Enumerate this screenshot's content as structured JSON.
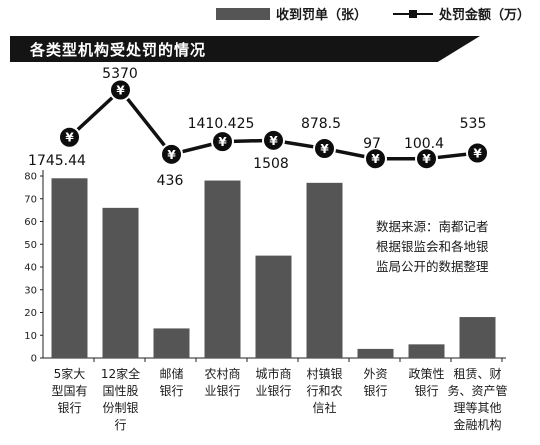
{
  "legend": {
    "bar_label": "收到罚单（张）",
    "line_label": "处罚金额（万）"
  },
  "title": "各类型机构受处罚的情况",
  "note": [
    "数据来源：南都记者",
    "根据银监会和各地银",
    "监局公开的数据整理"
  ],
  "icon": "¥",
  "colors": {
    "bar": "#555555",
    "line": "#111111",
    "coin": "#0d0d0d"
  },
  "chart_data": {
    "type": "bar+line",
    "categories": [
      [
        "5家大",
        "型国有",
        "银行"
      ],
      [
        "12家全",
        "国性股",
        "份制银",
        "行"
      ],
      [
        "邮储",
        "银行"
      ],
      [
        "农村商",
        "业银行"
      ],
      [
        "城市商",
        "业银行"
      ],
      [
        "村镇银",
        "行和农",
        "信社"
      ],
      [
        "外资",
        "银行"
      ],
      [
        "政策性",
        "银行"
      ],
      [
        "租赁、财",
        "务、资产管",
        "理等其他",
        "金融机构"
      ]
    ],
    "series": [
      {
        "name": "收到罚单（张）",
        "type": "bar",
        "values": [
          79,
          66,
          13,
          78,
          45,
          77,
          4,
          6,
          18
        ]
      },
      {
        "name": "处罚金额（万）",
        "type": "line",
        "values": [
          1745.44,
          5370,
          436,
          1410.425,
          1508,
          878.5,
          97,
          100.4,
          535
        ],
        "labels": [
          "1745.44",
          "5370",
          "436",
          "1410.425",
          "1508",
          "878.5",
          "97",
          "100.4",
          "535"
        ]
      }
    ],
    "y_ticks": [
      "0",
      "10",
      "20",
      "30",
      "40",
      "50",
      "60",
      "70",
      "80"
    ],
    "ylim": [
      0,
      80
    ],
    "grid": false
  }
}
